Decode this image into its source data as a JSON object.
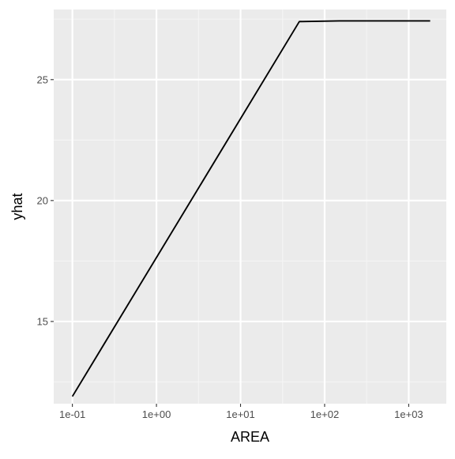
{
  "chart_data": {
    "type": "line",
    "title": "",
    "xlabel": "AREA",
    "ylabel": "yhat",
    "x_scale": "log10",
    "xlim": [
      0.06,
      2800
    ],
    "ylim": [
      11.6,
      27.9
    ],
    "x_ticks": [
      0.1,
      1,
      10,
      100,
      1000
    ],
    "x_tick_labels": [
      "1e-01",
      "1e+00",
      "1e+01",
      "1e+02",
      "1e+03"
    ],
    "y_ticks": [
      15,
      20,
      25
    ],
    "y_tick_labels": [
      "15",
      "20",
      "25"
    ],
    "grid": true,
    "legend": "none",
    "series": [
      {
        "x": [
          0.1,
          50,
          150,
          1800
        ],
        "y": [
          11.9,
          27.4,
          27.43,
          27.43
        ]
      }
    ]
  },
  "colors": {
    "panel_background": "#EBEBEB",
    "grid_major": "#FFFFFF",
    "grid_minor": "#F5F5F5",
    "line": "#000000",
    "tick": "#333333",
    "tick_label": "#4D4D4D"
  }
}
